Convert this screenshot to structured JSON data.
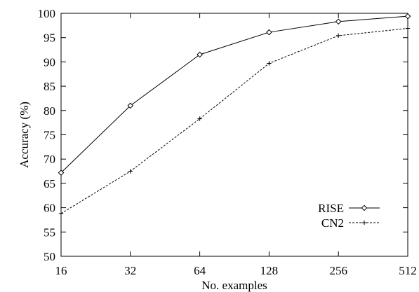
{
  "chart_data": {
    "type": "line",
    "title": "",
    "xlabel": "No. examples",
    "ylabel": "Accuracy (%)",
    "x_scale": "log2",
    "categories": [
      "16",
      "32",
      "64",
      "128",
      "256",
      "512"
    ],
    "ylim": [
      50,
      100
    ],
    "y_ticks": [
      "50",
      "55",
      "60",
      "65",
      "70",
      "75",
      "80",
      "85",
      "90",
      "95",
      "100"
    ],
    "grid": false,
    "legend_position": "lower-right",
    "series": [
      {
        "name": "RISE",
        "values": [
          67.2,
          81.0,
          91.5,
          96.1,
          98.3,
          99.4
        ],
        "marker": "diamond",
        "line_style": "solid",
        "color": "#000000"
      },
      {
        "name": "CN2",
        "values": [
          58.8,
          67.5,
          78.3,
          89.7,
          95.4,
          96.9
        ],
        "marker": "plus",
        "line_style": "dashed",
        "color": "#000000"
      }
    ]
  }
}
